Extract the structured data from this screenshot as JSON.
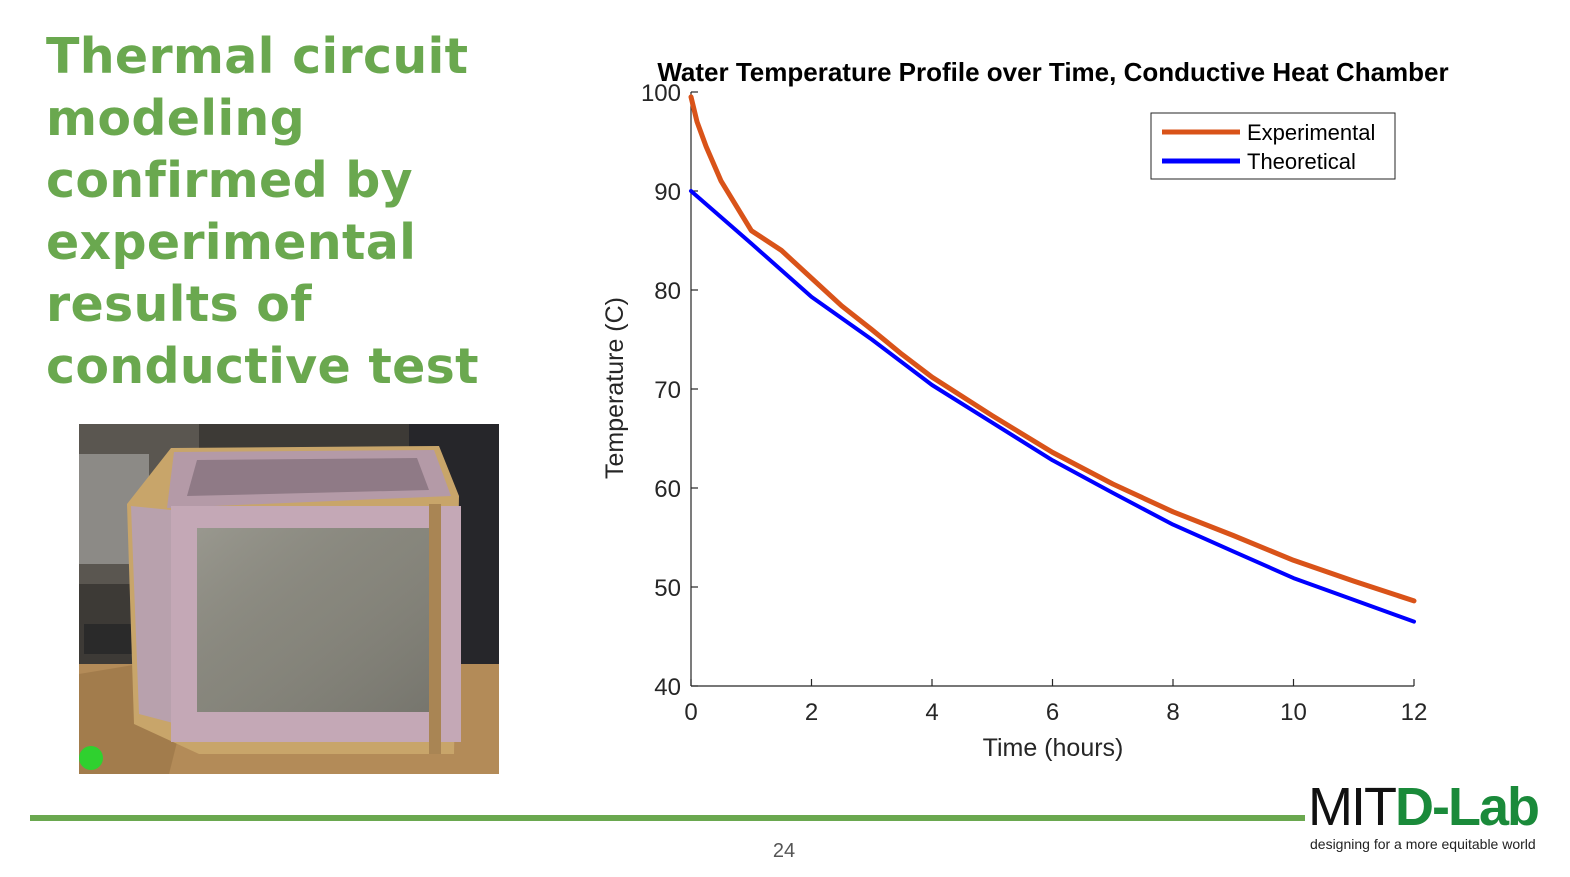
{
  "slide": {
    "title": "Thermal circuit modeling confirmed by experimental results of conductive test",
    "page_number": "24",
    "photo_description_icon": "insulated-box-photo"
  },
  "logo": {
    "mit": "MIT",
    "dlab": "D-Lab",
    "tagline": "designing for a more equitable world"
  },
  "colors": {
    "accent": "#6aa84f",
    "experimental": "#d95319",
    "theoretical": "#0000ff"
  },
  "chart_data": {
    "type": "line",
    "title": "Water Temperature Profile over Time, Conductive Heat Chamber",
    "xlabel": "Time (hours)",
    "ylabel": "Temperature (C)",
    "xlim": [
      0,
      12
    ],
    "ylim": [
      40,
      100
    ],
    "xticks": [
      0,
      2,
      4,
      6,
      8,
      10,
      12
    ],
    "yticks": [
      40,
      50,
      60,
      70,
      80,
      90,
      100
    ],
    "grid": false,
    "legend": "top-right",
    "series": [
      {
        "name": "Experimental",
        "color": "#d95319",
        "x": [
          0,
          0.1,
          0.25,
          0.5,
          1,
          1.5,
          2,
          2.5,
          3,
          3.5,
          4,
          5,
          6,
          7,
          8,
          9,
          10,
          11,
          12
        ],
        "y": [
          99.5,
          97,
          94.5,
          91,
          86,
          84,
          81.2,
          78.4,
          76,
          73.5,
          71.2,
          67.3,
          63.6,
          60.4,
          57.6,
          55.2,
          52.7,
          50.6,
          48.6
        ]
      },
      {
        "name": "Theoretical",
        "color": "#0000ff",
        "x": [
          0,
          1,
          2,
          3,
          4,
          5,
          6,
          7,
          8,
          9,
          10,
          11,
          12
        ],
        "y": [
          90,
          84.7,
          79.3,
          75,
          70.4,
          66.6,
          62.8,
          59.5,
          56.3,
          53.6,
          50.9,
          48.7,
          46.5
        ]
      }
    ]
  }
}
